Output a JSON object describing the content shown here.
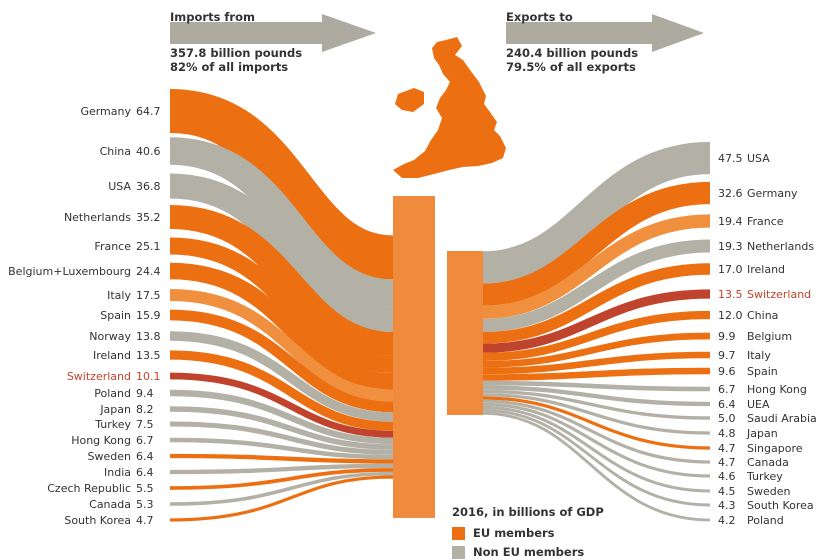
{
  "imports": {
    "heading": "Imports from",
    "total": "357.8 billion pounds",
    "share": "82% of all imports",
    "items": [
      {
        "country": "Germany",
        "value": 64.7,
        "group": "eu"
      },
      {
        "country": "China",
        "value": 40.6,
        "group": "non-eu"
      },
      {
        "country": "USA",
        "value": 36.8,
        "group": "non-eu"
      },
      {
        "country": "Netherlands",
        "value": 35.2,
        "group": "eu"
      },
      {
        "country": "France",
        "value": 25.1,
        "group": "eu"
      },
      {
        "country": "Belgium+Luxembourg",
        "value": 24.4,
        "group": "eu"
      },
      {
        "country": "Italy",
        "value": 17.5,
        "group": "eu-light"
      },
      {
        "country": "Spain",
        "value": 15.9,
        "group": "eu"
      },
      {
        "country": "Norway",
        "value": 13.8,
        "group": "non-eu"
      },
      {
        "country": "Ireland",
        "value": 13.5,
        "group": "eu"
      },
      {
        "country": "Switzerland",
        "value": 10.1,
        "group": "highlight"
      },
      {
        "country": "Poland",
        "value": 9.4,
        "group": "non-eu"
      },
      {
        "country": "Japan",
        "value": 8.2,
        "group": "non-eu"
      },
      {
        "country": "Turkey",
        "value": 7.5,
        "group": "non-eu"
      },
      {
        "country": "Hong Kong",
        "value": 6.7,
        "group": "non-eu"
      },
      {
        "country": "Sweden",
        "value": 6.4,
        "group": "eu"
      },
      {
        "country": "India",
        "value": 6.4,
        "group": "non-eu"
      },
      {
        "country": "Czech Republic",
        "value": 5.5,
        "group": "eu"
      },
      {
        "country": "Canada",
        "value": 5.3,
        "group": "non-eu"
      },
      {
        "country": "South Korea",
        "value": 4.7,
        "group": "eu"
      }
    ]
  },
  "exports": {
    "heading": "Exports to",
    "total": "240.4 billion pounds",
    "share": "79.5% of all exports",
    "items": [
      {
        "country": "USA",
        "value": 47.5,
        "group": "non-eu"
      },
      {
        "country": "Germany",
        "value": 32.6,
        "group": "eu"
      },
      {
        "country": "France",
        "value": 19.4,
        "group": "eu-light"
      },
      {
        "country": "Netherlands",
        "value": 19.3,
        "group": "non-eu"
      },
      {
        "country": "Ireland",
        "value": 17.0,
        "group": "eu"
      },
      {
        "country": "Switzerland",
        "value": 13.5,
        "group": "highlight"
      },
      {
        "country": "China",
        "value": 12.0,
        "group": "eu"
      },
      {
        "country": "Belgium",
        "value": 9.9,
        "group": "eu"
      },
      {
        "country": "Italy",
        "value": 9.7,
        "group": "eu"
      },
      {
        "country": "Spain",
        "value": 9.6,
        "group": "eu"
      },
      {
        "country": "Hong Kong",
        "value": 6.7,
        "group": "non-eu"
      },
      {
        "country": "UEA",
        "value": 6.4,
        "group": "non-eu"
      },
      {
        "country": "Saudi Arabia",
        "value": 5.0,
        "group": "non-eu"
      },
      {
        "country": "Japan",
        "value": 4.8,
        "group": "non-eu"
      },
      {
        "country": "Singapore",
        "value": 4.7,
        "group": "eu"
      },
      {
        "country": "Canada",
        "value": 4.7,
        "group": "non-eu"
      },
      {
        "country": "Turkey",
        "value": 4.6,
        "group": "non-eu"
      },
      {
        "country": "Sweden",
        "value": 4.5,
        "group": "non-eu"
      },
      {
        "country": "South Korea",
        "value": 4.3,
        "group": "non-eu"
      },
      {
        "country": "Poland",
        "value": 4.2,
        "group": "non-eu"
      }
    ]
  },
  "legend": {
    "title": "2016, in billions of GDP",
    "eu_label": "EU members",
    "non_eu_label": "Non EU members"
  },
  "colors": {
    "eu": "#EC7012",
    "eu-light": "#F0903F",
    "non-eu": "#B3B0A6",
    "highlight": "#C0432D",
    "hub": "#F08B3D",
    "arrow": "#ADAAA0",
    "label_highlight": "#C0432D"
  }
}
